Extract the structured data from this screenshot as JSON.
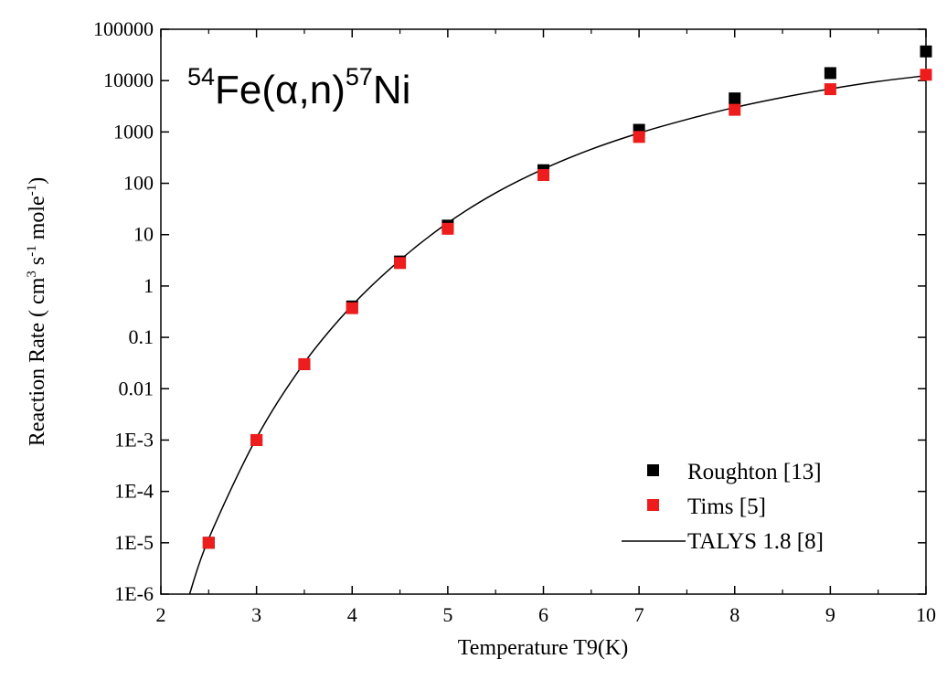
{
  "chart_data": {
    "type": "scatter",
    "title_parts": {
      "target_mass": "54",
      "target": "Fe",
      "reaction": "(α,n)",
      "product_mass": "57",
      "product": "Ni"
    },
    "xlabel": "Temperature T9(K)",
    "ylabel": {
      "prefix": "Reaction Rate ( cm",
      "sup1": "3",
      "mid1": " s",
      "sup2": "-1",
      "mid2": " mole",
      "sup3": "-1",
      "suffix": ")"
    },
    "xlim": [
      2,
      10
    ],
    "ylim": [
      1e-06,
      100000
    ],
    "yscale": "log",
    "x_ticks": [
      "2",
      "3",
      "4",
      "5",
      "6",
      "7",
      "8",
      "9",
      "10"
    ],
    "y_ticks": [
      "1E-6",
      "1E-5",
      "1E-4",
      "1E-3",
      "0.01",
      "0.1",
      "1",
      "10",
      "100",
      "1000",
      "10000",
      "100000"
    ],
    "legend_position": "bottom-right",
    "series": [
      {
        "name": "Roughton [13]",
        "kind": "markers",
        "color": "#000000",
        "x": [
          2.5,
          3,
          3.5,
          4,
          4.5,
          5,
          6,
          7,
          8,
          9,
          10
        ],
        "y": [
          1e-05,
          0.001,
          0.03,
          0.4,
          3,
          15,
          180,
          1100,
          4500,
          14000,
          37000
        ]
      },
      {
        "name": "Tims [5]",
        "kind": "markers",
        "color": "#ee1c1c",
        "x": [
          2.5,
          3,
          3.5,
          4,
          4.5,
          5,
          6,
          7,
          8,
          9,
          10
        ],
        "y": [
          1e-05,
          0.001,
          0.03,
          0.37,
          2.8,
          13,
          145,
          800,
          2700,
          6800,
          13000
        ]
      },
      {
        "name": "TALYS 1.8 [8]",
        "kind": "line",
        "color": "#000000",
        "x": [
          2.3,
          2.5,
          3,
          3.5,
          4,
          4.5,
          5,
          5.5,
          6,
          6.5,
          7,
          7.5,
          8,
          8.5,
          9,
          9.5,
          10
        ],
        "y": [
          1e-06,
          1.2e-05,
          0.0011,
          0.032,
          0.42,
          3.2,
          17,
          65,
          190,
          460,
          950,
          1750,
          3000,
          4700,
          6900,
          9600,
          12500
        ]
      }
    ]
  }
}
